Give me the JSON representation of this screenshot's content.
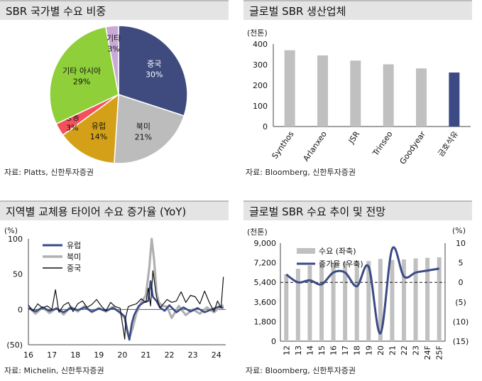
{
  "panels": {
    "p1": {
      "title": "SBR 국가별 수요 비중",
      "source": "자료: Platts, 신한투자증권"
    },
    "p2": {
      "title": "글로벌 SBR 생산업체",
      "source": "자료: Bloomberg, 신한투자증권",
      "unit": "(천톤)"
    },
    "p3": {
      "title": "지역별 교체용 타이어 수요 증가율 (YoY)",
      "source": "자료: Michelin, 신한투자증권",
      "unit": "(%)"
    },
    "p4": {
      "title": "글로벌 SBR 수요 추이 및 전망",
      "source": "자료: Bloomberg, 신한투자증권",
      "unit_left": "(천톤)",
      "unit_right": "(%)"
    }
  },
  "chart_data": [
    {
      "type": "pie",
      "labels": [
        "중국",
        "북미",
        "유럽",
        "중동",
        "기타 아시아",
        "기타"
      ],
      "values": [
        30,
        21,
        14,
        3,
        29,
        3
      ],
      "value_labels": [
        "30%",
        "21%",
        "14%",
        "3%",
        "29%",
        "3%"
      ],
      "colors": [
        "#3f4a7e",
        "#bcbcbc",
        "#d4a017",
        "#f4505a",
        "#8ecf3a",
        "#c9a9d8"
      ]
    },
    {
      "type": "bar",
      "categories": [
        "Synthos",
        "Arlanxeo",
        "JSR",
        "Trinseo",
        "Goodyear",
        "금호석유"
      ],
      "values": [
        370,
        345,
        320,
        302,
        282,
        262
      ],
      "ylim": [
        0,
        400
      ],
      "yticks": [
        0,
        100,
        200,
        300,
        400
      ],
      "colors": [
        "#c0c0c0",
        "#c0c0c0",
        "#c0c0c0",
        "#c0c0c0",
        "#c0c0c0",
        "#3b4a85"
      ]
    },
    {
      "type": "line",
      "ylim": [
        -50,
        100
      ],
      "yticks": [
        -50,
        0,
        50,
        100
      ],
      "ytick_labels": [
        "(50)",
        "0",
        "50",
        "100"
      ],
      "xtick_labels": [
        "16",
        "17",
        "18",
        "19",
        "20",
        "21",
        "22",
        "23",
        "24"
      ],
      "xlim": [
        2016,
        2024.4
      ],
      "series": [
        {
          "name": "유럽",
          "color": "#3b4a85",
          "x": [
            2016.0,
            2016.3,
            2016.6,
            2016.9,
            2017.2,
            2017.5,
            2017.8,
            2018.1,
            2018.4,
            2018.7,
            2019.0,
            2019.3,
            2019.6,
            2019.9,
            2020.1,
            2020.2,
            2020.3,
            2020.4,
            2020.5,
            2020.7,
            2020.9,
            2021.1,
            2021.2,
            2021.3,
            2021.45,
            2021.6,
            2021.8,
            2022.0,
            2022.3,
            2022.6,
            2022.9,
            2023.2,
            2023.5,
            2023.8,
            2024.1,
            2024.3
          ],
          "y": [
            2,
            -3,
            3,
            -2,
            1,
            -4,
            2,
            -1,
            3,
            -3,
            1,
            -2,
            2,
            -4,
            -10,
            -30,
            -43,
            -20,
            -8,
            5,
            10,
            12,
            40,
            18,
            12,
            3,
            -2,
            6,
            -4,
            3,
            -3,
            2,
            -4,
            0,
            4,
            2
          ]
        },
        {
          "name": "북미",
          "color": "#b0b0b0",
          "x": [
            2016.0,
            2016.3,
            2016.6,
            2016.9,
            2017.2,
            2017.5,
            2017.8,
            2018.1,
            2018.4,
            2018.7,
            2019.0,
            2019.3,
            2019.6,
            2019.9,
            2020.1,
            2020.2,
            2020.3,
            2020.45,
            2020.6,
            2020.8,
            2021.0,
            2021.15,
            2021.25,
            2021.35,
            2021.45,
            2021.55,
            2021.7,
            2021.9,
            2022.1,
            2022.4,
            2022.7,
            2023.0,
            2023.3,
            2023.6,
            2023.9,
            2024.1,
            2024.3
          ],
          "y": [
            4,
            -6,
            3,
            -5,
            2,
            -7,
            4,
            -3,
            5,
            -4,
            2,
            -3,
            4,
            -5,
            -12,
            -28,
            -40,
            -25,
            -5,
            10,
            20,
            60,
            100,
            70,
            25,
            10,
            5,
            4,
            -12,
            5,
            -8,
            0,
            -6,
            3,
            -4,
            2,
            6
          ]
        },
        {
          "name": "중국",
          "color": "#111111",
          "x": [
            2016.0,
            2016.2,
            2016.4,
            2016.6,
            2016.8,
            2017.0,
            2017.15,
            2017.3,
            2017.5,
            2017.7,
            2017.9,
            2018.1,
            2018.3,
            2018.5,
            2018.7,
            2018.9,
            2019.1,
            2019.3,
            2019.5,
            2019.7,
            2019.9,
            2020.05,
            2020.1,
            2020.15,
            2020.25,
            2020.4,
            2020.6,
            2020.8,
            2021.0,
            2021.1,
            2021.2,
            2021.3,
            2021.45,
            2021.6,
            2021.75,
            2021.9,
            2022.1,
            2022.3,
            2022.5,
            2022.7,
            2022.9,
            2023.1,
            2023.3,
            2023.5,
            2023.7,
            2023.9,
            2024.05,
            2024.2,
            2024.3
          ],
          "y": [
            6,
            -2,
            8,
            2,
            5,
            0,
            28,
            -4,
            6,
            10,
            -3,
            8,
            12,
            3,
            7,
            14,
            5,
            -2,
            10,
            4,
            2,
            -30,
            -42,
            -10,
            4,
            6,
            8,
            15,
            10,
            30,
            5,
            55,
            18,
            2,
            8,
            14,
            10,
            12,
            25,
            10,
            20,
            18,
            8,
            26,
            10,
            -3,
            12,
            2,
            46
          ]
        }
      ]
    },
    {
      "type": "bar",
      "categories": [
        "12",
        "13",
        "14",
        "15",
        "16",
        "17",
        "18",
        "19",
        "20",
        "21",
        "22",
        "23",
        "24F",
        "25F"
      ],
      "series": [
        {
          "name": "수요 (좌축)",
          "type": "bar",
          "color": "#c0c0c0",
          "values": [
            6150,
            6650,
            6950,
            7200,
            7230,
            7280,
            7300,
            7350,
            7550,
            7450,
            7500,
            7600,
            7650,
            7700
          ]
        },
        {
          "name": "증가율 (우축)",
          "type": "line",
          "color": "#3b4a85",
          "values": [
            2,
            0,
            0.5,
            -0.5,
            2.5,
            2.5,
            -1,
            4,
            -13,
            8.5,
            1.5,
            2.5,
            3,
            3.5
          ]
        }
      ],
      "ylim_left": [
        0,
        9000
      ],
      "yticks_left": [
        0,
        1800,
        3600,
        5400,
        7200,
        9000
      ],
      "ytick_labels_left": [
        "0",
        "1,800",
        "3,600",
        "5,400",
        "7,200",
        "9,000"
      ],
      "ylim_right": [
        -15,
        10
      ],
      "yticks_right": [
        -15,
        -10,
        -5,
        0,
        5,
        10
      ],
      "ytick_labels_right": [
        "(15)",
        "(10)",
        "(5)",
        "0",
        "5",
        "10"
      ]
    }
  ]
}
